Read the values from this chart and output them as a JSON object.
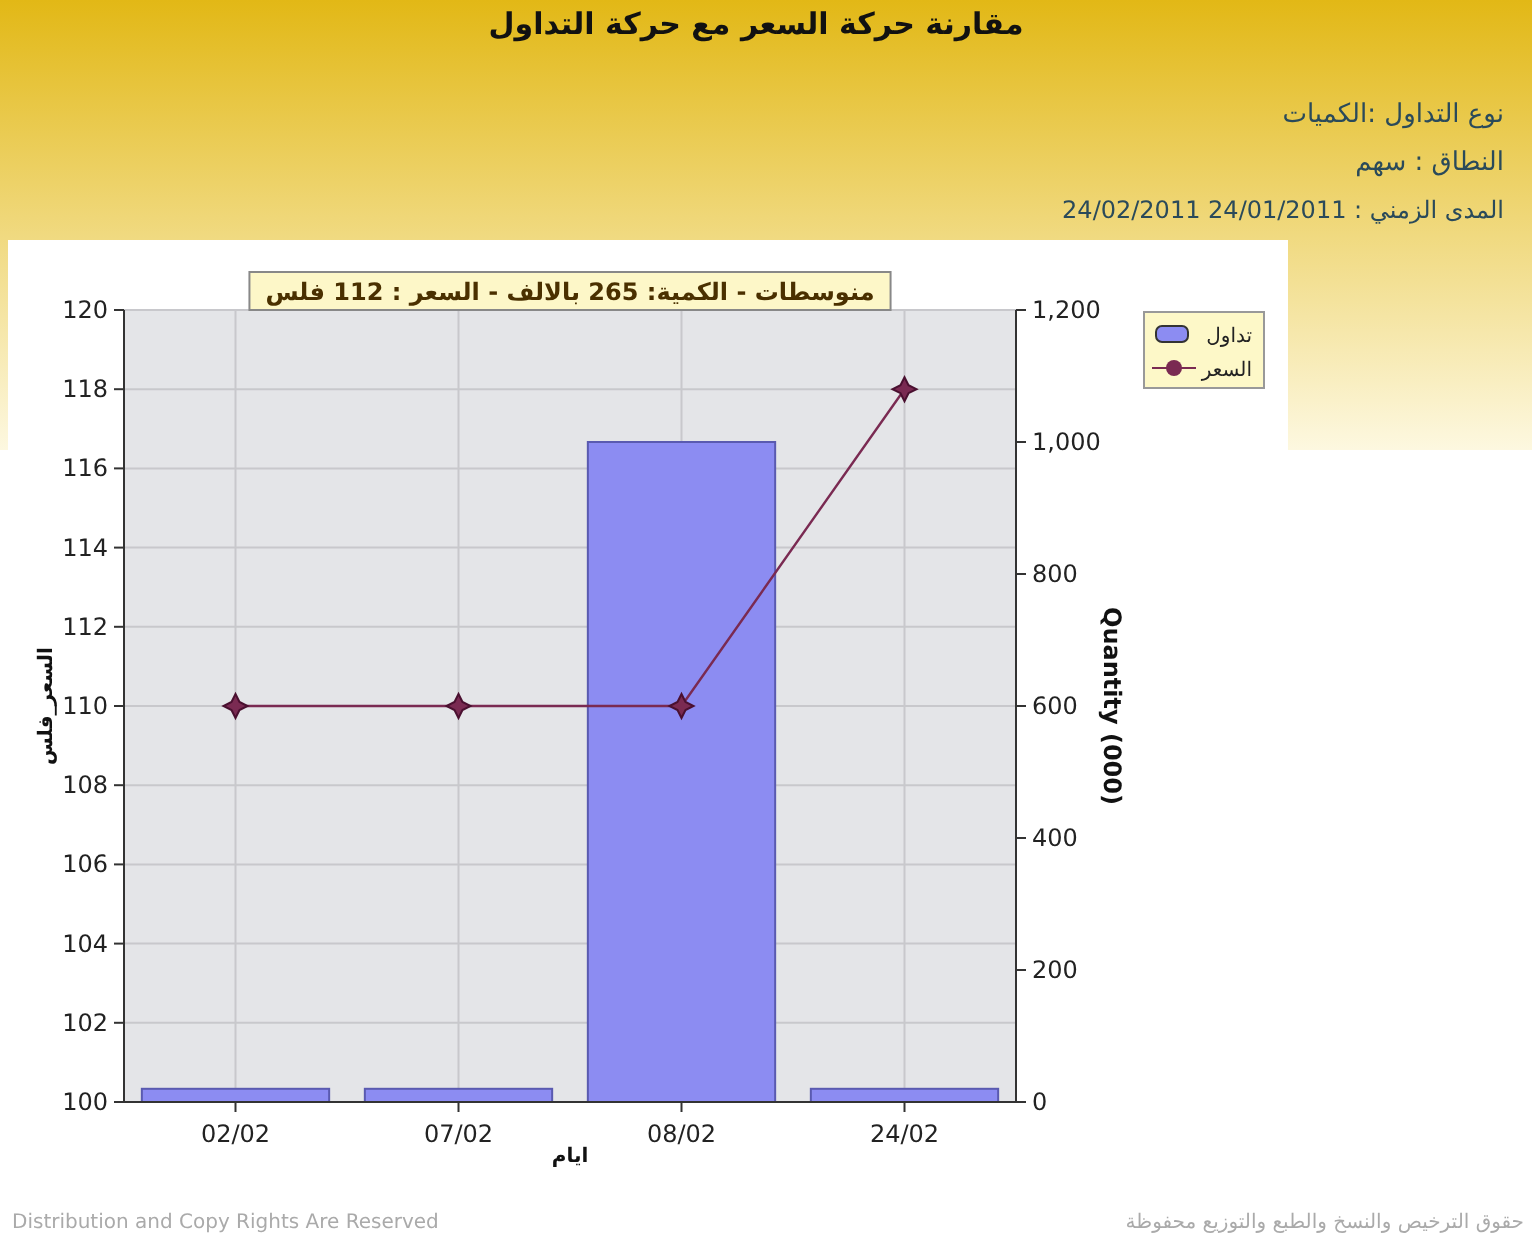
{
  "chart_data": {
    "type": "bar",
    "title": "مقارنة حركة السعر مع حركة التداول",
    "xlabel": "ايام",
    "ylabel": "السعر_فلس",
    "y2label": "Quantity (000)",
    "categories": [
      "02/02",
      "07/02",
      "08/02",
      "24/02"
    ],
    "series": [
      {
        "name": "تداول",
        "axis": "y2",
        "color": "#8c8cf2",
        "values": [
          20,
          20,
          1000,
          20
        ]
      },
      {
        "name": "السعر",
        "type": "line",
        "color": "#7a2a52",
        "marker": "diamond",
        "values": [
          110,
          110,
          110,
          118
        ]
      }
    ],
    "ylim": [
      100,
      120
    ],
    "yticks": [
      100,
      102,
      104,
      106,
      108,
      110,
      112,
      114,
      116,
      118,
      120
    ],
    "y2lim": [
      0,
      1200
    ],
    "y2ticks": [
      {
        "value": 0,
        "label": "0"
      },
      {
        "value": 200,
        "label": "200"
      },
      {
        "value": 400,
        "label": "400"
      },
      {
        "value": 600,
        "label": "600"
      },
      {
        "value": 800,
        "label": "800"
      },
      {
        "value": 1000,
        "label": "1,000"
      },
      {
        "value": 1200,
        "label": "1,200"
      }
    ],
    "grid": true,
    "legend": "top right",
    "annotations": [
      "نوع التداول :الكميات",
      "النطاق : سهم",
      "المدى الزمني :  24/01/2011 24/02/2011",
      "منوسطات - الكمية: 265 بالالف  - السعر : 112 فلس",
      "Distribution and Copy Rights Are Reserved",
      "حقوق الترخيص والنسخ والطبع والتوزيع محفوظة"
    ]
  }
}
